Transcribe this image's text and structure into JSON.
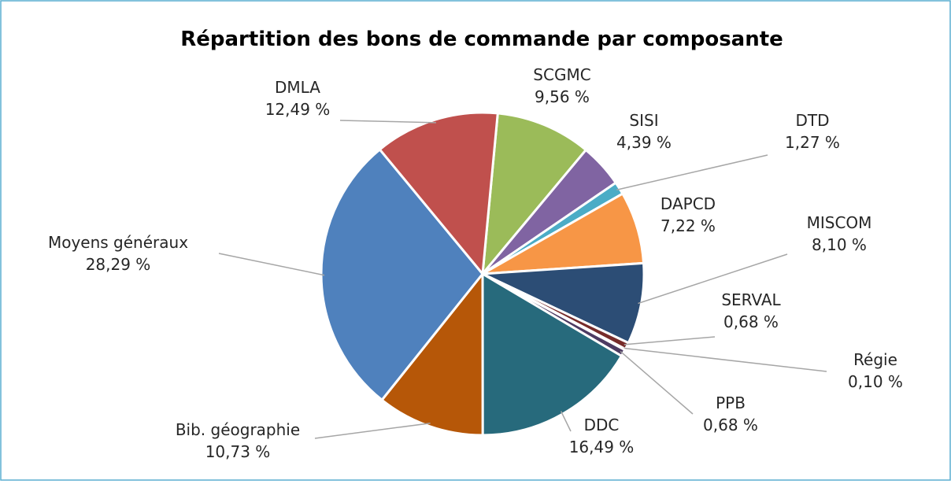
{
  "chart_data": {
    "type": "pie",
    "title": "Répartition des bons de commande par composante",
    "categories": [
      "SCGMC",
      "SISI",
      "DTD",
      "DAPCD",
      "MISCOM",
      "SERVAL",
      "Régie",
      "PPB",
      "DDC",
      "Bib. géographie",
      "Moyens généraux",
      "DMLA"
    ],
    "values": [
      9.56,
      4.39,
      1.27,
      7.22,
      8.1,
      0.68,
      0.1,
      0.68,
      16.49,
      10.73,
      28.29,
      12.49
    ],
    "value_labels": [
      "9,56 %",
      "4,39 %",
      "1,27 %",
      "7,22 %",
      "8,10 %",
      "0,68 %",
      "0,10 %",
      "0,68 %",
      "16,49 %",
      "10,73 %",
      "28,29 %",
      "12,49 %"
    ],
    "colors": [
      "#9bbb59",
      "#8064a2",
      "#4bacc6",
      "#f79646",
      "#2c4d75",
      "#772c2a",
      "#5f7530",
      "#4d3b62",
      "#276a7c",
      "#b65708",
      "#4f81bd",
      "#c0504d"
    ]
  }
}
